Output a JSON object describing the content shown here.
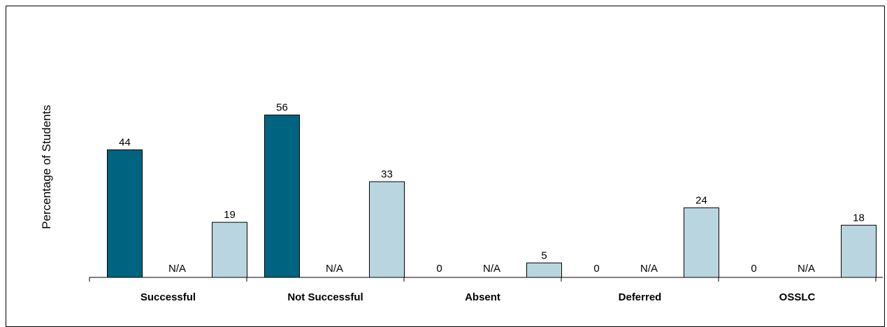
{
  "chart_data": {
    "type": "bar",
    "title": "",
    "xlabel": "",
    "ylabel": "Percentage of Students",
    "categories": [
      "Successful",
      "Not Successful",
      "Absent",
      "Deferred",
      "OSSLC"
    ],
    "ylim": [
      0,
      100
    ],
    "grid": false,
    "legend": "none",
    "na_label": "N/A",
    "series": [
      {
        "values": [
          44,
          56,
          0,
          0,
          0
        ],
        "labels": [
          "44",
          "56",
          "0",
          "0",
          "0"
        ],
        "color": "#006380"
      },
      {
        "values": [
          null,
          null,
          null,
          null,
          null
        ],
        "labels": [
          "N/A",
          "N/A",
          "N/A",
          "N/A",
          "N/A"
        ],
        "color": "#0a4f6b"
      },
      {
        "values": [
          19,
          33,
          5,
          24,
          18
        ],
        "labels": [
          "19",
          "33",
          "5",
          "24",
          "18"
        ],
        "color": "#b9d6e0"
      }
    ]
  }
}
